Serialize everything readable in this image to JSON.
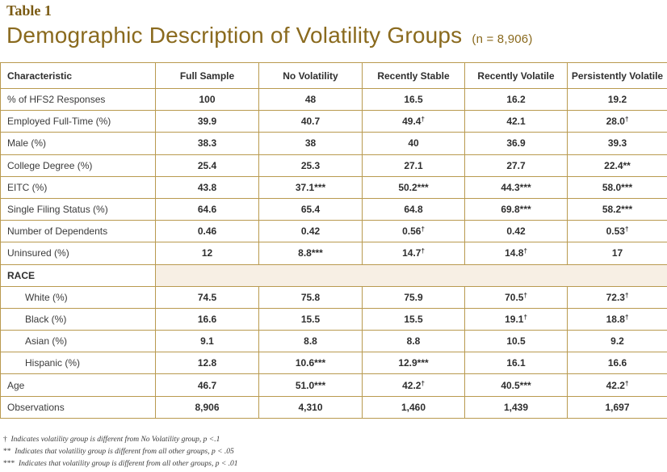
{
  "table_label": "Table 1",
  "title": "Demographic Description of Volatility Groups",
  "sample_note": "(n = 8,906)",
  "columns": [
    "Characteristic",
    "Full Sample",
    "No Volatility",
    "Recently Stable",
    "Recently Volatile",
    "Persistently Volatile"
  ],
  "rows": [
    {
      "label": "% of HFS2 Responses",
      "values": [
        "100",
        "48",
        "16.5",
        "16.2",
        "19.2"
      ]
    },
    {
      "label": "Employed Full-Time (%)",
      "values": [
        "39.9",
        "40.7",
        "49.4†",
        "42.1",
        "28.0†"
      ]
    },
    {
      "label": "Male (%)",
      "values": [
        "38.3",
        "38",
        "40",
        "36.9",
        "39.3"
      ]
    },
    {
      "label": "College Degree (%)",
      "values": [
        "25.4",
        "25.3",
        "27.1",
        "27.7",
        "22.4**"
      ]
    },
    {
      "label": "EITC (%)",
      "values": [
        "43.8",
        "37.1***",
        "50.2***",
        "44.3***",
        "58.0***"
      ]
    },
    {
      "label": "Single Filing Status (%)",
      "values": [
        "64.6",
        "65.4",
        "64.8",
        "69.8***",
        "58.2***"
      ]
    },
    {
      "label": "Number of Dependents",
      "values": [
        "0.46",
        "0.42",
        "0.56†",
        "0.42",
        "0.53†"
      ]
    },
    {
      "label": "Uninsured (%)",
      "values": [
        "12",
        "8.8***",
        "14.7†",
        "14.8†",
        "17"
      ]
    }
  ],
  "race_header": "RACE",
  "race_rows": [
    {
      "label": "White (%)",
      "values": [
        "74.5",
        "75.8",
        "75.9",
        "70.5†",
        "72.3†"
      ]
    },
    {
      "label": "Black (%)",
      "values": [
        "16.6",
        "15.5",
        "15.5",
        "19.1†",
        "18.8†"
      ]
    },
    {
      "label": "Asian (%)",
      "values": [
        "9.1",
        "8.8",
        "8.8",
        "10.5",
        "9.2"
      ]
    },
    {
      "label": "Hispanic (%)",
      "values": [
        "12.8",
        "10.6***",
        "12.9***",
        "16.1",
        "16.6"
      ]
    }
  ],
  "tail_rows": [
    {
      "label": "Age",
      "values": [
        "46.7",
        "51.0***",
        "42.2†",
        "40.5***",
        "42.2†"
      ]
    },
    {
      "label": "Observations",
      "values": [
        "8,906",
        "4,310",
        "1,460",
        "1,439",
        "1,697"
      ]
    }
  ],
  "notes": [
    {
      "mark": "†",
      "text": "Indicates volatility group is different from No Volatility group, p <.1"
    },
    {
      "mark": "**",
      "text": "Indicates that volatility group is different from all other groups, p < .05"
    },
    {
      "mark": "***",
      "text": "Indicates that volatility group is different from all other groups, p < .01"
    }
  ]
}
